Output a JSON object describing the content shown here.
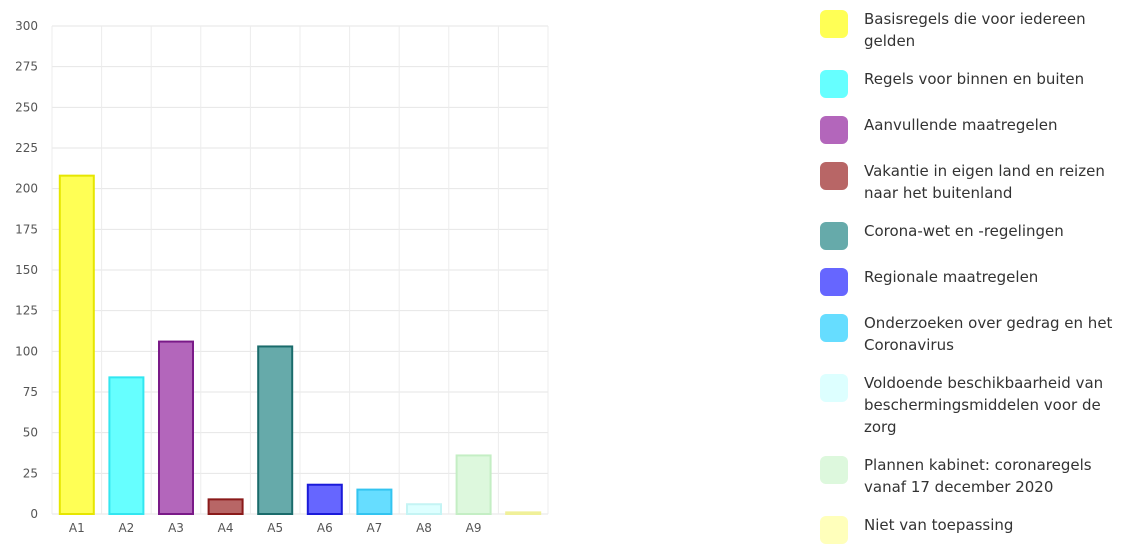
{
  "chart_data": {
    "type": "bar",
    "categories": [
      "A1",
      "A2",
      "A3",
      "A4",
      "A5",
      "A6",
      "A7",
      "A8",
      "A9",
      ""
    ],
    "values": [
      208,
      84,
      106,
      9,
      103,
      18,
      15,
      6,
      36,
      1
    ],
    "ylim": [
      0,
      300
    ],
    "yticks": [
      0,
      25,
      50,
      75,
      100,
      125,
      150,
      175,
      200,
      225,
      250,
      275,
      300
    ],
    "grid": true,
    "legend_position": "right",
    "legend": [
      {
        "label": "Basisregels die voor iedereen gelden",
        "color": "#ffff55"
      },
      {
        "label": "Regels voor binnen en buiten",
        "color": "#66ffff"
      },
      {
        "label": "Aanvullende maatregelen",
        "color": "#b366bb"
      },
      {
        "label": "Vakantie in eigen land en reizen naar het buitenland",
        "color": "#b86666"
      },
      {
        "label": "Corona-wet en -regelingen",
        "color": "#66aaaa"
      },
      {
        "label": "Regionale maatregelen",
        "color": "#6666ff"
      },
      {
        "label": "Onderzoeken over gedrag en het Coronavirus",
        "color": "#66ddff"
      },
      {
        "label": "Voldoende beschikbaarheid van beschermingsmiddelen voor de zorg",
        "color": "#ddffff"
      },
      {
        "label": "Plannen kabinet: coronaregels vanaf 17 december 2020",
        "color": "#ddf8dd"
      },
      {
        "label": "Niet van toepassing",
        "color": "#ffffbb"
      }
    ],
    "bar_fill": [
      "#ffff55",
      "#66ffff",
      "#b366bb",
      "#b86666",
      "#66aaaa",
      "#6666ff",
      "#66ddff",
      "#ddffff",
      "#ddf8dd",
      "#ffffbb"
    ],
    "bar_stroke": [
      "#e6e600",
      "#33e6f0",
      "#7a1a88",
      "#8a1a1a",
      "#1a6b6b",
      "#1a1ad9",
      "#33c4f0",
      "#c4f4f4",
      "#c4eec4",
      "#f0f099"
    ]
  }
}
